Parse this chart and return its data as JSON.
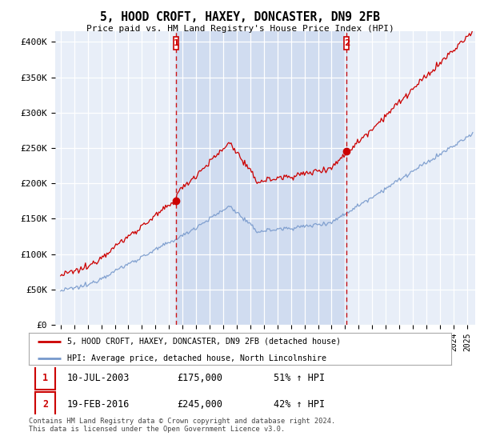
{
  "title": "5, HOOD CROFT, HAXEY, DONCASTER, DN9 2FB",
  "subtitle": "Price paid vs. HM Land Registry's House Price Index (HPI)",
  "yticks": [
    0,
    50000,
    100000,
    150000,
    200000,
    250000,
    300000,
    350000,
    400000
  ],
  "ytick_labels": [
    "£0",
    "£50K",
    "£100K",
    "£150K",
    "£200K",
    "£250K",
    "£300K",
    "£350K",
    "£400K"
  ],
  "ylim": [
    0,
    415000
  ],
  "xlim": [
    1994.6,
    2025.6
  ],
  "sale1_x": 2003.52,
  "sale1_y": 175000,
  "sale2_x": 2016.12,
  "sale2_y": 245000,
  "legend_line1": "5, HOOD CROFT, HAXEY, DONCASTER, DN9 2FB (detached house)",
  "legend_line2": "HPI: Average price, detached house, North Lincolnshire",
  "footnote": "Contains HM Land Registry data © Crown copyright and database right 2024.\nThis data is licensed under the Open Government Licence v3.0.",
  "table_rows": [
    [
      "1",
      "10-JUL-2003",
      "£175,000",
      "51% ↑ HPI"
    ],
    [
      "2",
      "19-FEB-2016",
      "£245,000",
      "42% ↑ HPI"
    ]
  ],
  "bg_color": "#e8eef8",
  "plot_bg": "#e8eef8",
  "shade_color": "#d0dcf0",
  "red_color": "#cc0000",
  "blue_color": "#7799cc",
  "grid_color": "#ffffff",
  "vline_color": "#cc0000"
}
